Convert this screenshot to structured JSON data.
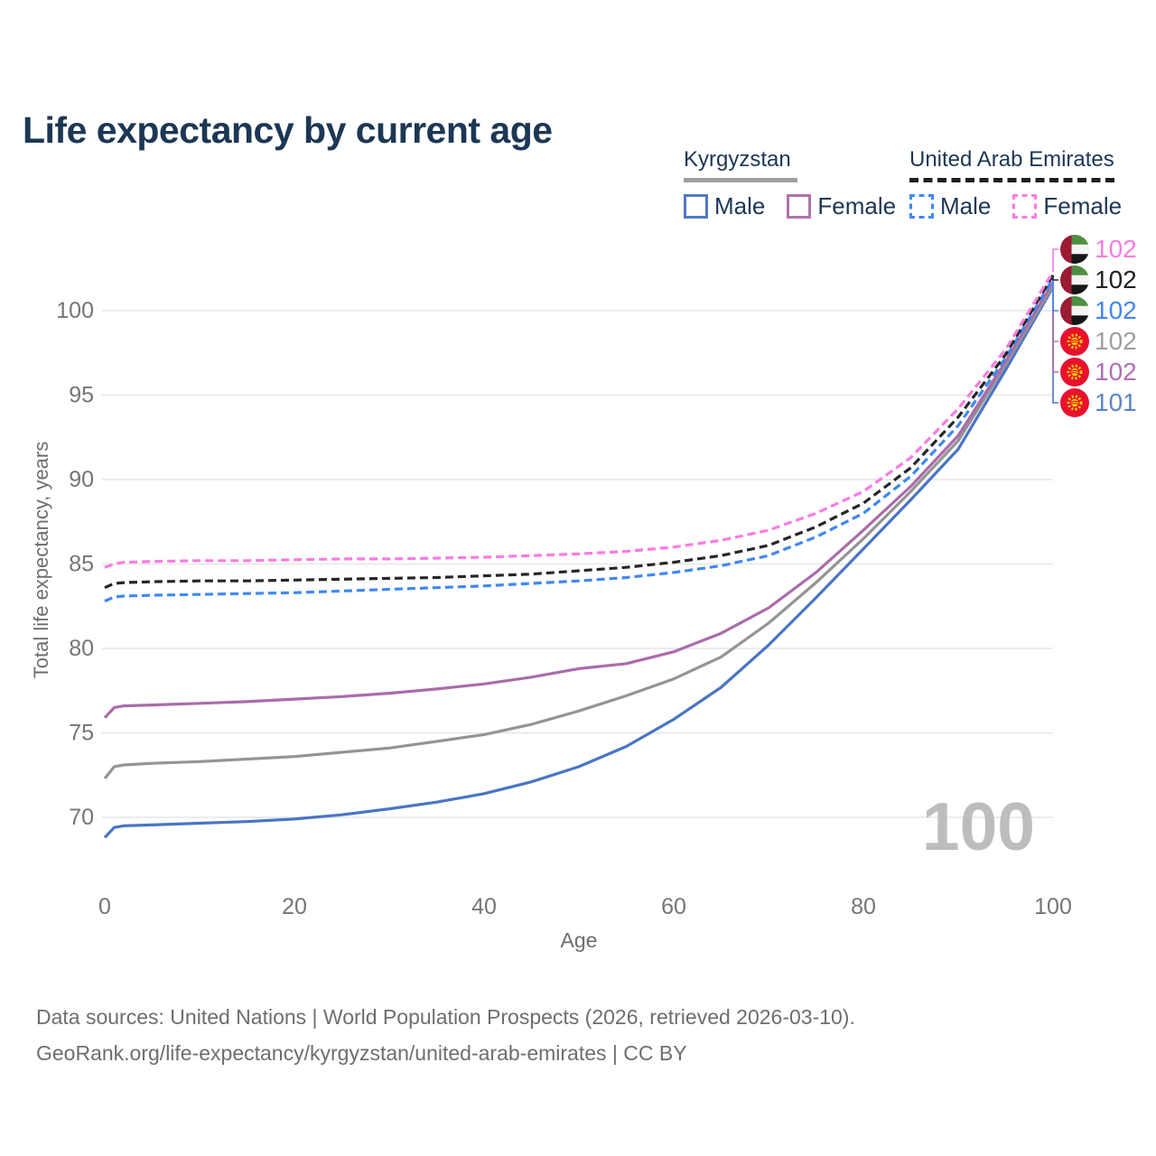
{
  "header": {
    "title": "Life expectancy by current age"
  },
  "legend": {
    "groups": [
      {
        "country": "Kyrgyzstan",
        "line_style": "solid",
        "line_color": "#9e9e9e",
        "items": [
          {
            "label": "Male",
            "color": "#4f7ac7"
          },
          {
            "label": "Female",
            "color": "#b172ae"
          }
        ]
      },
      {
        "country": "United Arab Emirates",
        "line_style": "dashed",
        "line_color": "#1f1f1f",
        "items": [
          {
            "label": "Male",
            "color": "#3f88f2"
          },
          {
            "label": "Female",
            "color": "#f97ce2"
          }
        ]
      }
    ]
  },
  "chart_data": {
    "type": "line",
    "title": "Life expectancy by current age",
    "xlabel": "Age",
    "ylabel": "Total life expectancy, years",
    "xlim": [
      0,
      100
    ],
    "ylim": [
      67.5,
      103
    ],
    "x_ticks": [
      0,
      20,
      40,
      60,
      80,
      100
    ],
    "y_ticks": [
      70,
      75,
      80,
      85,
      90,
      95,
      100
    ],
    "grid": "horizontal",
    "legend_position": "top-right",
    "watermark_label": "100",
    "series": [
      {
        "name": "Kyrgyzstan Male",
        "country": "Kyrgyzstan",
        "sex": "Male",
        "color": "#4a75c4",
        "dashed": false,
        "flag": "kgz",
        "end_label": "101",
        "end_label_color": "#5b84c8",
        "label_slot": 5,
        "points": [
          [
            0,
            68.8
          ],
          [
            1,
            69.4
          ],
          [
            2,
            69.5
          ],
          [
            5,
            69.55
          ],
          [
            10,
            69.65
          ],
          [
            15,
            69.75
          ],
          [
            20,
            69.9
          ],
          [
            25,
            70.15
          ],
          [
            30,
            70.5
          ],
          [
            35,
            70.9
          ],
          [
            40,
            71.4
          ],
          [
            45,
            72.1
          ],
          [
            50,
            73.0
          ],
          [
            55,
            74.2
          ],
          [
            60,
            75.8
          ],
          [
            65,
            77.7
          ],
          [
            70,
            80.2
          ],
          [
            75,
            83.0
          ],
          [
            80,
            85.9
          ],
          [
            85,
            88.8
          ],
          [
            90,
            91.8
          ],
          [
            95,
            96.5
          ],
          [
            100,
            101.4
          ]
        ]
      },
      {
        "name": "Kyrgyzstan Both sexes",
        "country": "Kyrgyzstan",
        "sex": "Both",
        "color": "#949494",
        "dashed": false,
        "flag": "kgz",
        "end_label": "102",
        "end_label_color": "#9e9e9e",
        "label_slot": 3,
        "points": [
          [
            0,
            72.3
          ],
          [
            1,
            73.0
          ],
          [
            2,
            73.1
          ],
          [
            5,
            73.2
          ],
          [
            10,
            73.3
          ],
          [
            15,
            73.45
          ],
          [
            20,
            73.6
          ],
          [
            25,
            73.85
          ],
          [
            30,
            74.1
          ],
          [
            35,
            74.5
          ],
          [
            40,
            74.9
          ],
          [
            45,
            75.5
          ],
          [
            50,
            76.3
          ],
          [
            55,
            77.2
          ],
          [
            60,
            78.2
          ],
          [
            65,
            79.5
          ],
          [
            70,
            81.5
          ],
          [
            75,
            83.9
          ],
          [
            80,
            86.5
          ],
          [
            85,
            89.3
          ],
          [
            90,
            92.3
          ],
          [
            95,
            96.8
          ],
          [
            100,
            101.5
          ]
        ]
      },
      {
        "name": "Kyrgyzstan Female",
        "country": "Kyrgyzstan",
        "sex": "Female",
        "color": "#ab6bab",
        "dashed": false,
        "flag": "kgz",
        "end_label": "102",
        "end_label_color": "#b070b0",
        "label_slot": 4,
        "points": [
          [
            0,
            75.9
          ],
          [
            1,
            76.5
          ],
          [
            2,
            76.6
          ],
          [
            5,
            76.65
          ],
          [
            10,
            76.75
          ],
          [
            15,
            76.85
          ],
          [
            20,
            77.0
          ],
          [
            25,
            77.15
          ],
          [
            30,
            77.35
          ],
          [
            35,
            77.6
          ],
          [
            40,
            77.9
          ],
          [
            45,
            78.3
          ],
          [
            50,
            78.8
          ],
          [
            55,
            79.1
          ],
          [
            60,
            79.8
          ],
          [
            65,
            80.9
          ],
          [
            70,
            82.4
          ],
          [
            75,
            84.5
          ],
          [
            80,
            87.0
          ],
          [
            85,
            89.6
          ],
          [
            90,
            92.6
          ],
          [
            95,
            97.0
          ],
          [
            100,
            101.7
          ]
        ]
      },
      {
        "name": "United Arab Emirates Male",
        "country": "United Arab Emirates",
        "sex": "Male",
        "color": "#3f88f2",
        "dashed": true,
        "flag": "are",
        "end_label": "102",
        "end_label_color": "#4285f4",
        "label_slot": 2,
        "points": [
          [
            0,
            82.8
          ],
          [
            1,
            83.05
          ],
          [
            2,
            83.1
          ],
          [
            5,
            83.15
          ],
          [
            10,
            83.2
          ],
          [
            15,
            83.25
          ],
          [
            20,
            83.3
          ],
          [
            25,
            83.4
          ],
          [
            30,
            83.5
          ],
          [
            35,
            83.6
          ],
          [
            40,
            83.7
          ],
          [
            45,
            83.85
          ],
          [
            50,
            84.0
          ],
          [
            55,
            84.2
          ],
          [
            60,
            84.5
          ],
          [
            65,
            84.9
          ],
          [
            70,
            85.5
          ],
          [
            75,
            86.6
          ],
          [
            80,
            88.0
          ],
          [
            85,
            90.2
          ],
          [
            90,
            93.2
          ],
          [
            95,
            97.2
          ],
          [
            100,
            101.9
          ]
        ]
      },
      {
        "name": "United Arab Emirates Both sexes",
        "country": "United Arab Emirates",
        "sex": "Both",
        "color": "#262626",
        "dashed": true,
        "flag": "are",
        "end_label": "102",
        "end_label_color": "#222222",
        "label_slot": 1,
        "points": [
          [
            0,
            83.6
          ],
          [
            1,
            83.85
          ],
          [
            2,
            83.9
          ],
          [
            5,
            83.95
          ],
          [
            10,
            84.0
          ],
          [
            15,
            84.0
          ],
          [
            20,
            84.05
          ],
          [
            25,
            84.1
          ],
          [
            30,
            84.15
          ],
          [
            35,
            84.2
          ],
          [
            40,
            84.3
          ],
          [
            45,
            84.4
          ],
          [
            50,
            84.6
          ],
          [
            55,
            84.8
          ],
          [
            60,
            85.1
          ],
          [
            65,
            85.5
          ],
          [
            70,
            86.1
          ],
          [
            75,
            87.2
          ],
          [
            80,
            88.6
          ],
          [
            85,
            90.7
          ],
          [
            90,
            93.7
          ],
          [
            95,
            97.4
          ],
          [
            100,
            102.1
          ]
        ]
      },
      {
        "name": "United Arab Emirates Female",
        "country": "United Arab Emirates",
        "sex": "Female",
        "color": "#f97ce2",
        "dashed": true,
        "flag": "are",
        "end_label": "102",
        "end_label_color": "#f97ce2",
        "label_slot": 0,
        "points": [
          [
            0,
            84.8
          ],
          [
            1,
            85.0
          ],
          [
            2,
            85.1
          ],
          [
            5,
            85.15
          ],
          [
            10,
            85.2
          ],
          [
            15,
            85.2
          ],
          [
            20,
            85.25
          ],
          [
            25,
            85.3
          ],
          [
            30,
            85.3
          ],
          [
            35,
            85.35
          ],
          [
            40,
            85.4
          ],
          [
            45,
            85.5
          ],
          [
            50,
            85.6
          ],
          [
            55,
            85.75
          ],
          [
            60,
            86.0
          ],
          [
            65,
            86.4
          ],
          [
            70,
            87.0
          ],
          [
            75,
            88.0
          ],
          [
            80,
            89.3
          ],
          [
            85,
            91.3
          ],
          [
            90,
            94.2
          ],
          [
            95,
            97.7
          ],
          [
            100,
            102.3
          ]
        ]
      }
    ]
  },
  "footer": {
    "line1": "Data sources: United Nations | World Population Prospects (2026, retrieved 2026-03-10).",
    "line2": "GeoRank.org/life-expectancy/kyrgyzstan/united-arab-emirates | CC BY"
  }
}
